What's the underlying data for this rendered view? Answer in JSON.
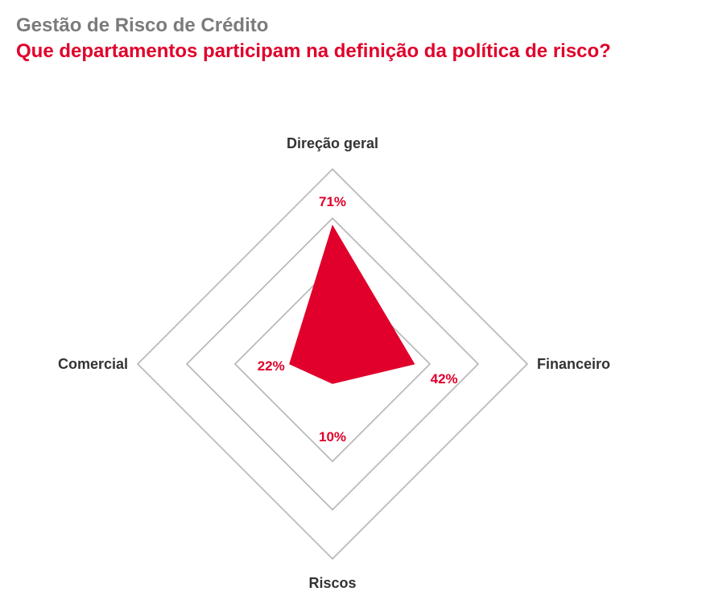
{
  "header": {
    "supertitle": "Gestão de Risco de Crédito",
    "title": "Que departamentos participam na definição da política de risco?"
  },
  "colors": {
    "accent": "#e0002b",
    "supertitle": "#7b7b7b",
    "grid": "#b5b5b5",
    "axis_label": "#333333"
  },
  "chart_data": {
    "type": "radar",
    "title": "Que departamentos participam na definição da política de risco?",
    "categories": [
      "Direção geral",
      "Financeiro",
      "Riscos",
      "Comercial"
    ],
    "values": [
      71,
      42,
      10,
      22
    ],
    "value_labels": [
      "71%",
      "42%",
      "10%",
      "22%"
    ],
    "unit": "%",
    "rlim": [
      0,
      100
    ],
    "grid_rings": 3,
    "grid": true,
    "legend": "none"
  }
}
